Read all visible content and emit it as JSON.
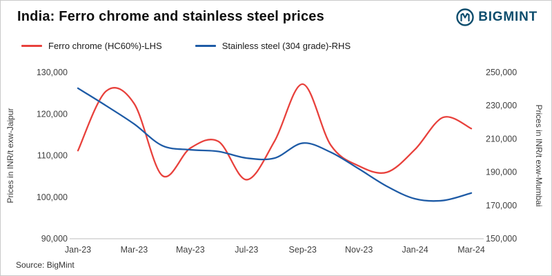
{
  "header": {
    "title": "India: Ferro chrome and stainless steel prices",
    "logo_text": "BIGMINT",
    "logo_color": "#0d4d6d"
  },
  "legend": [
    {
      "label": "Ferro chrome (HC60%)-LHS",
      "color": "#e8413c"
    },
    {
      "label": "Stainless steel (304 grade)-RHS",
      "color": "#1e5ba6"
    }
  ],
  "source": "Source: BigMint",
  "chart_data": {
    "type": "line",
    "x": [
      "Jan-23",
      "Feb-23",
      "Mar-23",
      "Apr-23",
      "May-23",
      "Jun-23",
      "Jul-23",
      "Aug-23",
      "Sep-23",
      "Oct-23",
      "Nov-23",
      "Dec-23",
      "Jan-24",
      "Feb-24",
      "Mar-24"
    ],
    "x_tick_labels": [
      "Jan-23",
      "Mar-23",
      "May-23",
      "Jul-23",
      "Sep-23",
      "Nov-23",
      "Jan-24",
      "Mar-24"
    ],
    "series": [
      {
        "name": "Ferro chrome (HC60%)-LHS",
        "axis": "left",
        "color": "#e8413c",
        "values": [
          111200,
          125500,
          122500,
          105200,
          111800,
          113400,
          104200,
          113500,
          127200,
          112500,
          107500,
          106000,
          111500,
          119200,
          116500
        ]
      },
      {
        "name": "Stainless steel (304 grade)-RHS",
        "axis": "right",
        "color": "#1e5ba6",
        "values": [
          240500,
          230000,
          219000,
          206000,
          203500,
          202500,
          198500,
          198500,
          207500,
          202000,
          192000,
          181500,
          174000,
          173000,
          177500
        ]
      }
    ],
    "left_axis": {
      "label": "Prices in INR/t exw-Jaipur",
      "min": 90000,
      "max": 130000,
      "step": 10000
    },
    "right_axis": {
      "label": "Prices in INR/t exw-Mumbai",
      "min": 150000,
      "max": 250000,
      "step": 20000
    },
    "grid": false,
    "legend_position": "top"
  }
}
